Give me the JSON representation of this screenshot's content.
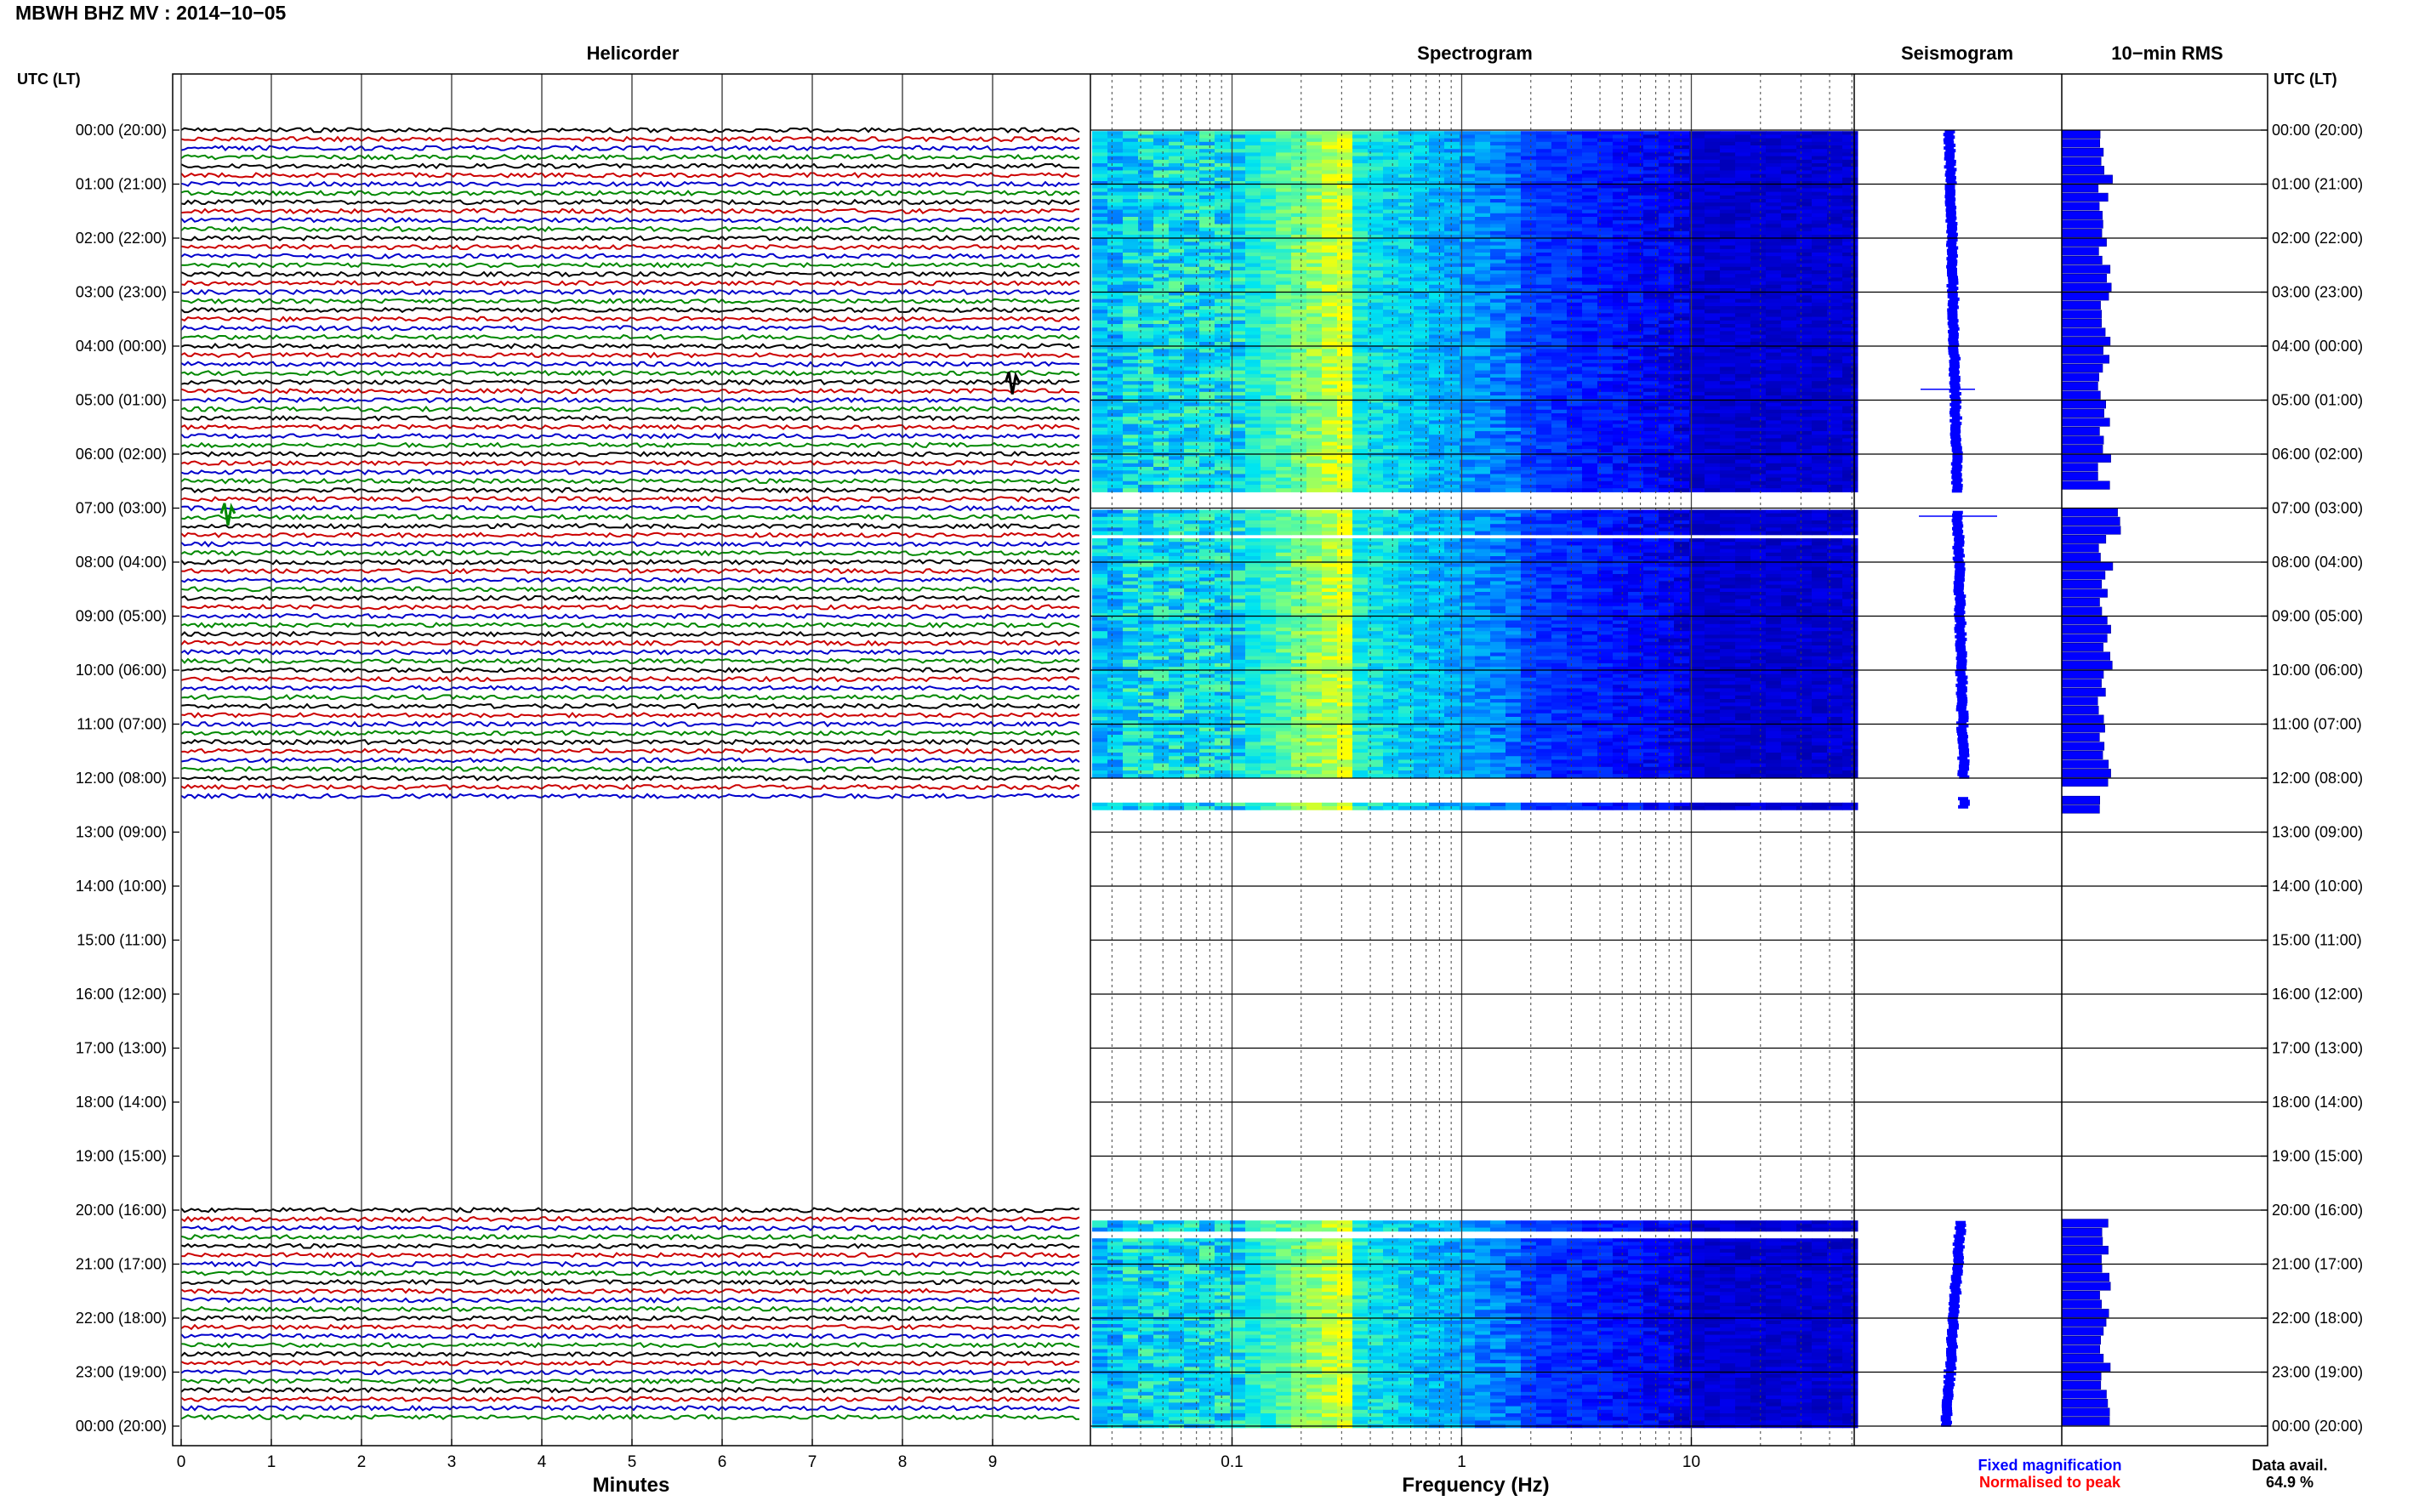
{
  "title": "MBWH BHZ MV : 2014−10−05",
  "panels": {
    "helicorder": "Helicorder",
    "spectrogram": "Spectrogram",
    "seismogram": "Seismogram",
    "rms": "10−min RMS"
  },
  "utc_header": "UTC (LT)",
  "legend": {
    "fixed": "Fixed magnification",
    "normalised": "Normalised to peak",
    "fixed_color": "#0000ff",
    "normalised_color": "#ff0000"
  },
  "data_availability": {
    "label": "Data avail.",
    "value": "64.9 %"
  },
  "chart_data": [
    {
      "type": "helicorder",
      "title": "Helicorder",
      "xlabel": "Minutes",
      "x_ticks": [
        "0",
        "1",
        "2",
        "3",
        "4",
        "5",
        "6",
        "7",
        "8",
        "9"
      ],
      "xlim": [
        0,
        10
      ],
      "time_labels": [
        "00:00 (20:00)",
        "01:00 (21:00)",
        "02:00 (22:00)",
        "03:00 (23:00)",
        "04:00 (00:00)",
        "05:00 (01:00)",
        "06:00 (02:00)",
        "07:00 (03:00)",
        "08:00 (04:00)",
        "09:00 (05:00)",
        "10:00 (06:00)",
        "11:00 (07:00)",
        "12:00 (08:00)",
        "13:00 (09:00)",
        "14:00 (10:00)",
        "15:00 (11:00)",
        "16:00 (12:00)",
        "17:00 (13:00)",
        "18:00 (14:00)",
        "19:00 (15:00)",
        "20:00 (16:00)",
        "21:00 (17:00)",
        "22:00 (18:00)",
        "23:00 (19:00)",
        "00:00 (20:00)"
      ],
      "trace_colors": [
        "#000000",
        "#cc0000",
        "#0000cc",
        "#008800"
      ],
      "data_segments_hours": [
        [
          0,
          7.0
        ],
        [
          7.0,
          7.5
        ],
        [
          7.5,
          12.3
        ],
        [
          12.3,
          12.5
        ],
        [
          20.0,
          24.0
        ]
      ],
      "events": [
        {
          "hour": 4.67,
          "minute": 9.2
        },
        {
          "hour": 7.1,
          "minute": 0.5
        }
      ]
    },
    {
      "type": "heatmap",
      "title": "Spectrogram",
      "xlabel": "Frequency (Hz)",
      "x_scale": "log",
      "x_ticks": [
        "0.1",
        "1",
        "10"
      ],
      "xlim": [
        0.02,
        50
      ],
      "colormap": [
        "#00ffff",
        "#00a0ff",
        "#0000ff",
        "#000090",
        "#ffff00"
      ],
      "data_segments_hours": [
        [
          0,
          6.65
        ],
        [
          7.0,
          7.45
        ],
        [
          7.55,
          11.95
        ],
        [
          12.4,
          12.55
        ],
        [
          20.15,
          20.35
        ],
        [
          20.5,
          24.0
        ]
      ]
    },
    {
      "type": "line",
      "title": "Seismogram",
      "color": "#0000ff",
      "data_segments_hours": [
        [
          0,
          6.65
        ],
        [
          7.0,
          12.0
        ],
        [
          12.35,
          12.55
        ],
        [
          20.2,
          24.0
        ]
      ]
    },
    {
      "type": "bar",
      "title": "10−min RMS",
      "color": "#0000ff",
      "data_segments_hours": [
        [
          0,
          6.65
        ],
        [
          7.0,
          12.0
        ],
        [
          12.3,
          12.55
        ],
        [
          20.1,
          24.0
        ]
      ]
    }
  ]
}
